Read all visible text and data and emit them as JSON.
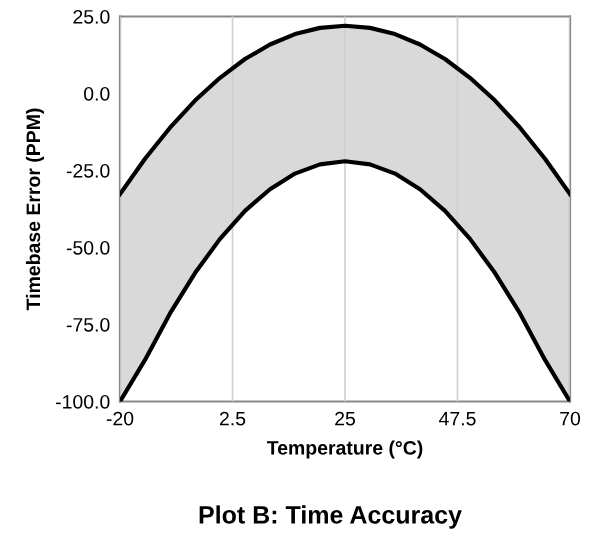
{
  "chart_data": {
    "type": "line",
    "xlabel": "Temperature (°C)",
    "ylabel": "Timebase Error (PPM)",
    "annotations": [
      "Plot B: Time Accuracy"
    ],
    "x": [
      -20,
      -15,
      -10,
      -5,
      0,
      5,
      10,
      15,
      20,
      25,
      30,
      35,
      40,
      45,
      50,
      55,
      60,
      65,
      70
    ],
    "series": [
      {
        "color": "#000000",
        "values": [
          -32.7,
          -21.2,
          -11.1,
          -2.3,
          5.1,
          11.2,
          15.9,
          19.3,
          21.3,
          22,
          21.3,
          19.3,
          15.9,
          11.2,
          5.1,
          -2.3,
          -11.1,
          -21.2,
          -32.7
        ],
        "upper": [
          -32.7,
          -21.2,
          -11.1,
          -2.3,
          5.1,
          11.2,
          15.9,
          19.3,
          21.3,
          22,
          21.3,
          19.3,
          15.9,
          11.2,
          5.1,
          -2.3,
          -11.1,
          -21.2,
          -32.7
        ],
        "lower": [
          -100,
          -86.5,
          -71.4,
          -58.3,
          -47.2,
          -38.1,
          -31.1,
          -26.0,
          -23.0,
          -22,
          -23.0,
          -26.0,
          -31.1,
          -38.1,
          -47.2,
          -58.3,
          -71.4,
          -86.5,
          -100
        ]
      },
      {
        "color": "#000000",
        "values": [
          -100,
          -86.5,
          -71.4,
          -58.3,
          -47.2,
          -38.1,
          -31.1,
          -26.0,
          -23.0,
          -22,
          -23.0,
          -26.0,
          -31.1,
          -38.1,
          -47.2,
          -58.3,
          -71.4,
          -86.5,
          -100
        ]
      }
    ],
    "xlim": [
      -20,
      70
    ],
    "xticks": [
      -20,
      2.5,
      25,
      47.5,
      70
    ],
    "ylim": [
      -100,
      25
    ],
    "yticks": [
      {
        "value": -100,
        "label": "-100.0"
      },
      {
        "value": -75,
        "label": "-75.0"
      },
      {
        "value": -50,
        "label": "-50.0"
      },
      {
        "value": -25,
        "label": "-25.0"
      },
      {
        "value": 0,
        "label": "0.0"
      },
      {
        "value": 25,
        "label": "25.0"
      }
    ],
    "grid": "x"
  }
}
